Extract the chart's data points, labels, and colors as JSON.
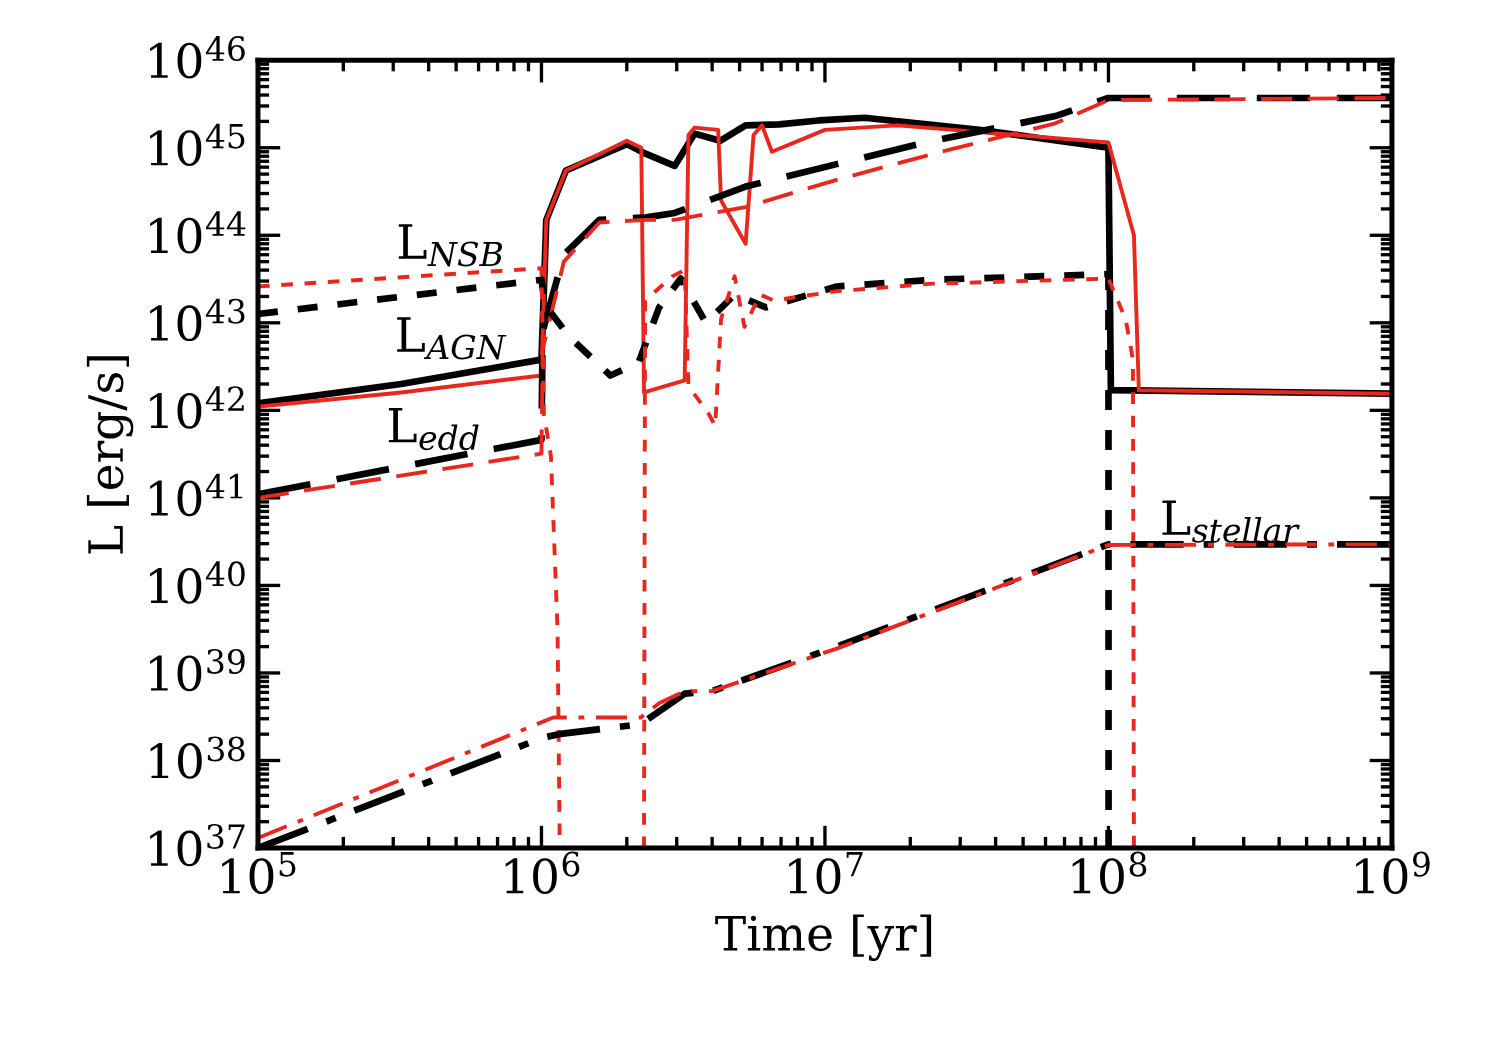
{
  "chart_data": {
    "type": "line",
    "xlabel": "Time [yr]",
    "ylabel": "L [erg/s]",
    "log": "xy",
    "grid": false,
    "legend": false,
    "xlim": [
      100000.0,
      1000000000.0
    ],
    "ylim": [
      1e+37,
      1e+46
    ],
    "xticks": [
      {
        "value": 100000.0,
        "label": "10$^{5}$"
      },
      {
        "value": 1000000.0,
        "label": "10$^{6}$"
      },
      {
        "value": 10000000.0,
        "label": "10$^{7}$"
      },
      {
        "value": 100000000.0,
        "label": "10$^{8}$"
      },
      {
        "value": 1000000000.0,
        "label": "10$^{9}$"
      }
    ],
    "yticks": [
      {
        "value": 1e+37,
        "label": "10$^{37}$"
      },
      {
        "value": 1e+38,
        "label": "10$^{38}$"
      },
      {
        "value": 1e+39,
        "label": "10$^{39}$"
      },
      {
        "value": 1e+40,
        "label": "10$^{40}$"
      },
      {
        "value": 1e+41,
        "label": "10$^{41}$"
      },
      {
        "value": 1e+42,
        "label": "10$^{42}$"
      },
      {
        "value": 1e+43,
        "label": "10$^{43}$"
      },
      {
        "value": 1e+44,
        "label": "10$^{44}$"
      },
      {
        "value": 1e+45,
        "label": "10$^{45}$"
      },
      {
        "value": 1e+46,
        "label": "10$^{46}$"
      }
    ],
    "annotations": [
      "L$_{stellar}$"
    ],
    "series": [
      {
        "name": "L$_{AGN}$",
        "color": "#000000",
        "line_style": "solid",
        "x": [
          100000.0,
          320000.0,
          1000000.0,
          1040000.0,
          1220000.0,
          2000000.0,
          2340000.0,
          2950000.0,
          3470000.0,
          4270000.0,
          5250000.0,
          6900000.0,
          9500000.0,
          13800000.0,
          35000000.0,
          100000000.0,
          102000000.0,
          1000000000.0
        ],
        "values": [
          1.2e+42,
          2e+42,
          3.8e+42,
          1.5e+44,
          5.5e+44,
          1.1e+45,
          8.5e+44,
          6.2e+44,
          1.45e+45,
          1.2e+45,
          1.8e+45,
          1.85e+45,
          2.05e+45,
          2.2e+45,
          1.6e+45,
          1e+45,
          1.7e+42,
          1.55e+42
        ]
      },
      {
        "color": "#e8281e",
        "line_style": "solid",
        "x": [
          100000.0,
          320000.0,
          1000000.0,
          1040000.0,
          1220000.0,
          2000000.0,
          2250000.0,
          2300000.0,
          3200000.0,
          3300000.0,
          3470000.0,
          4200000.0,
          4300000.0,
          5250000.0,
          5600000.0,
          6000000.0,
          6500000.0,
          10000000.0,
          18000000.0,
          100000000.0,
          123000000.0,
          128000000.0,
          1000000000.0
        ],
        "values": [
          1.1e+42,
          1.6e+42,
          2.5e+42,
          1.5e+44,
          5.5e+44,
          1.2e+45,
          1e+45,
          1.6e+42,
          2.2e+42,
          1.4e+45,
          1.7e+45,
          1.6e+45,
          2.5e+44,
          8e+43,
          1.4e+45,
          1.8e+45,
          9e+44,
          1.6e+45,
          1.8e+45,
          1.15e+45,
          1e+44,
          1.7e+42,
          1.55e+42
        ]
      },
      {
        "name": "L$_{edd}$",
        "color": "#000000",
        "line_style": "dashed",
        "x": [
          100000.0,
          1000000.0,
          1010000.0,
          1200000.0,
          1600000.0,
          2340000.0,
          2950000.0,
          5250000.0,
          11000000.0,
          24000000.0,
          65000000.0,
          100000000.0,
          1000000000.0
        ],
        "values": [
          1.1e+41,
          4.6e+41,
          8e+42,
          6e+43,
          1.5e+44,
          1.6e+44,
          1.8e+44,
          3.6e+44,
          6.5e+44,
          1.2e+45,
          2.3e+45,
          3.7e+45,
          3.7e+45
        ]
      },
      {
        "color": "#e8281e",
        "line_style": "dashed",
        "x": [
          100000.0,
          1000000.0,
          1010000.0,
          1200000.0,
          1600000.0,
          2340000.0,
          2950000.0,
          5250000.0,
          11000000.0,
          24000000.0,
          65000000.0,
          100000000.0,
          1000000000.0
        ],
        "values": [
          1e+41,
          3.2e+41,
          5e+42,
          5e+43,
          1.4e+44,
          1.5e+44,
          1.5e+44,
          2.1e+44,
          4.3e+44,
          8.5e+44,
          1.9e+45,
          3.5e+45,
          3.7e+45
        ]
      },
      {
        "name": "L$_{NSB}$",
        "color": "#000000",
        "line_style": "dotted",
        "x": [
          100000.0,
          1000000.0,
          1030000.0,
          1250000.0,
          1750000.0,
          2200000.0,
          2600000.0,
          3100000.0,
          3800000.0,
          4800000.0,
          6200000.0,
          11000000.0,
          24000000.0,
          100000000.0,
          100100000.0
        ],
        "values": [
          1.26e+43,
          3.1e+43,
          1.6e+43,
          7e+42,
          2.5e+42,
          3.5e+42,
          1.5e+43,
          3.2e+43,
          1e+43,
          2.1e+43,
          1.5e+43,
          2.6e+43,
          3.1e+43,
          3.6e+43,
          1e+37
        ]
      },
      {
        "color": "#e8281e",
        "line_style": "dotted",
        "x": [
          100000.0,
          1000000.0,
          1020000.0,
          1080000.0,
          1140000.0,
          1160000.0,
          1500000.0,
          2300000.0,
          2320000.0,
          2900000.0,
          3200000.0,
          3300000.0,
          3900000.0,
          4100000.0,
          4300000.0,
          4800000.0,
          5200000.0,
          5900000.0,
          6600000.0,
          11000000.0,
          24000000.0,
          100000000.0,
          115000000.0,
          122000000.0,
          123000000.0
        ],
        "values": [
          2.6e+43,
          4.2e+43,
          9e+41,
          3e+41,
          3e+39,
          1e+37,
          null,
          1e+37,
          1.8e+43,
          3.4e+43,
          4e+43,
          1.9e+42,
          9e+41,
          6.6e+41,
          1.1e+43,
          3.4e+43,
          9e+42,
          2.1e+43,
          1.8e+43,
          2.3e+43,
          2.8e+43,
          3.2e+43,
          1.1e+43,
          3.8e+42,
          1e+37
        ]
      },
      {
        "color": "#000000",
        "line_style": "dashdot",
        "x": [
          100000.0,
          1000000.0,
          1150000.0,
          2240000.0,
          3200000.0,
          4000000.0,
          11000000.0,
          100000000.0,
          1000000000.0
        ],
        "values": [
          1e+37,
          1.8e+38,
          2e+38,
          2.6e+38,
          5.8e+38,
          6.2e+38,
          2e+39,
          2.95e+40,
          2.95e+40
        ]
      },
      {
        "color": "#e8281e",
        "line_style": "dashdot",
        "x": [
          100000.0,
          1100000.0,
          2240000.0,
          2600000.0,
          3200000.0,
          4000000.0,
          11000000.0,
          100000000.0,
          1000000000.0
        ],
        "values": [
          1.3e+37,
          3.1e+38,
          3.1e+38,
          4.5e+38,
          6.2e+38,
          6.2e+38,
          1.9e+39,
          2.9e+40,
          2.95e+40
        ]
      }
    ]
  }
}
